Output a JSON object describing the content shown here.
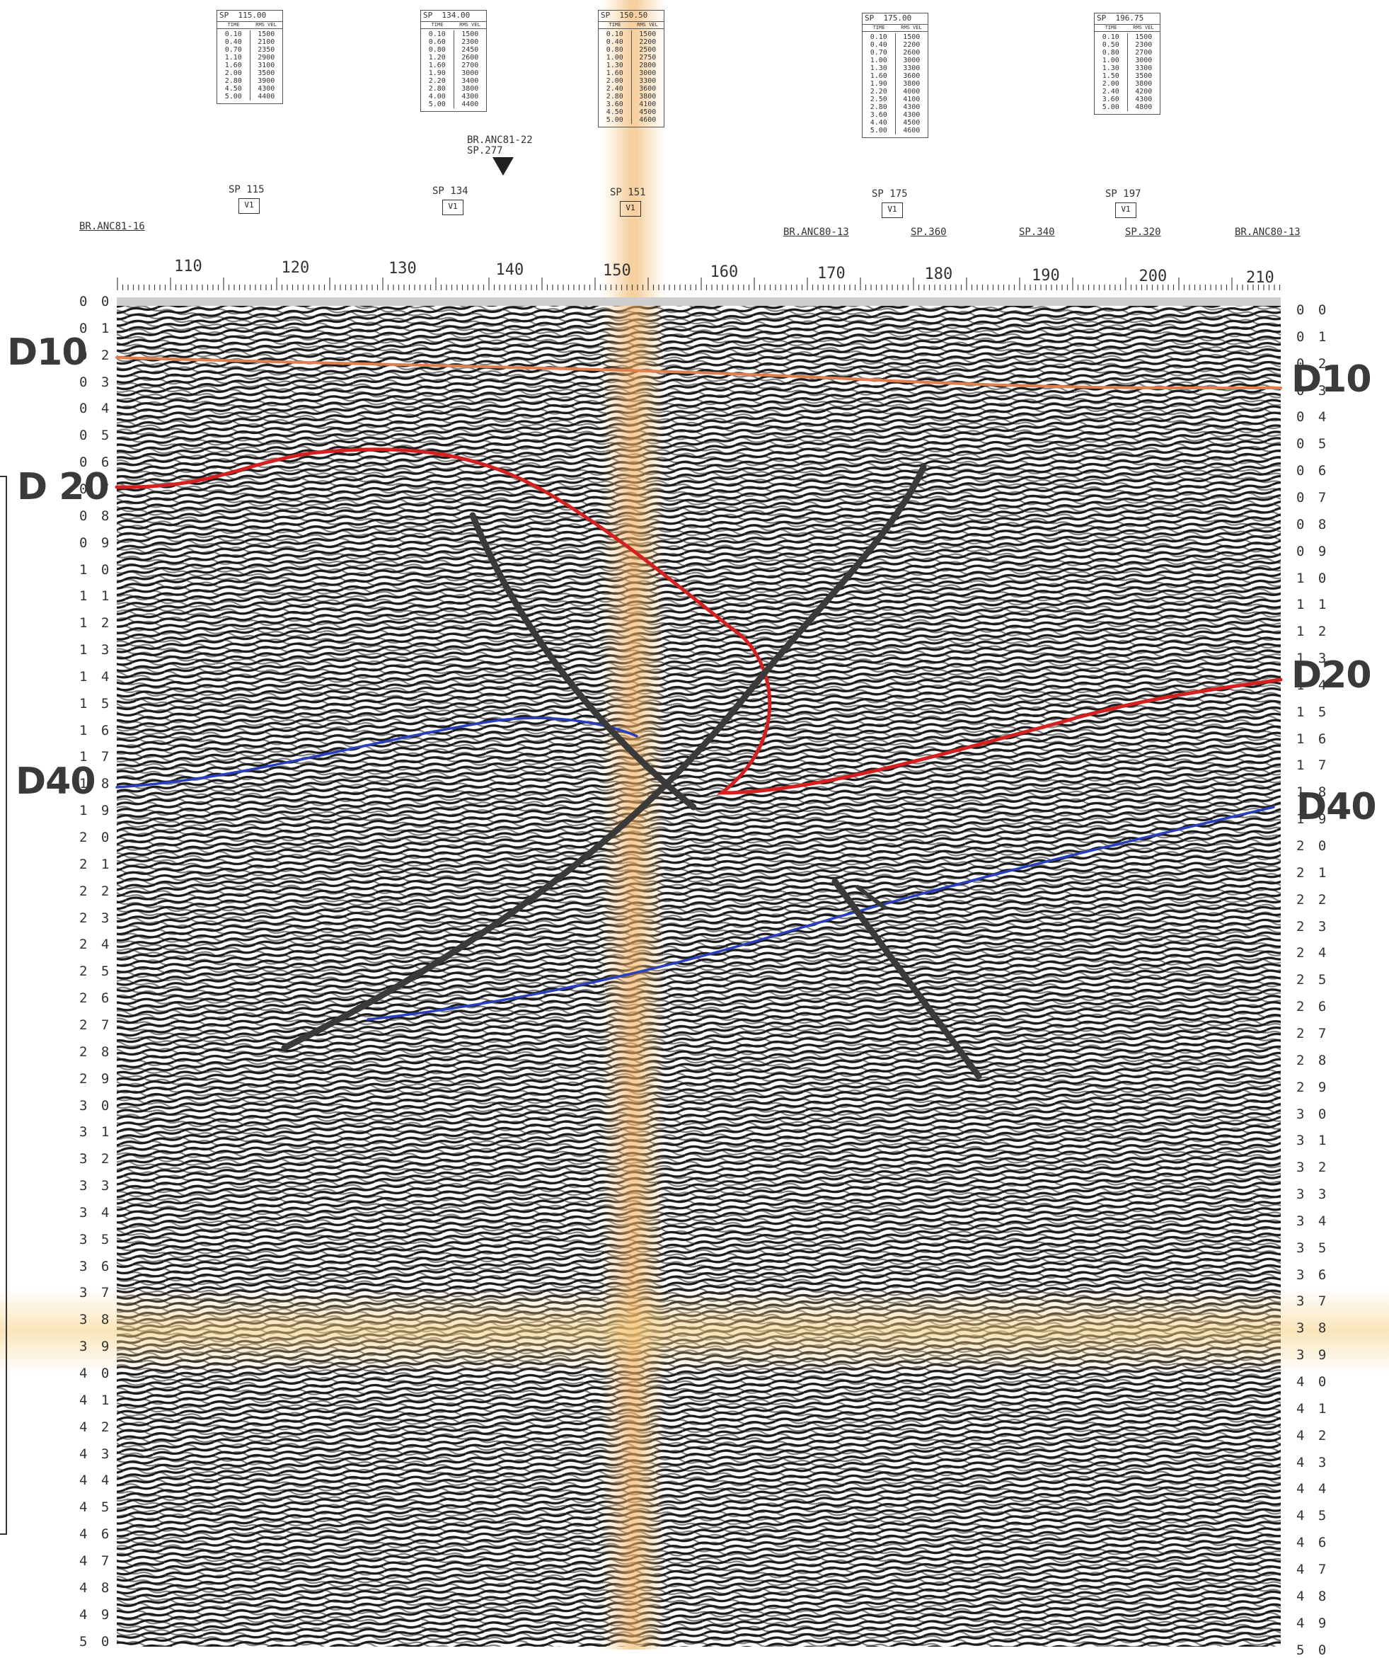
{
  "velocity_tables": [
    {
      "sp": "115.00",
      "col_time": "TIME",
      "col_vel": "RMS VEL",
      "times": [
        "0.10",
        "0.40",
        "0.70",
        "1.10",
        "1.60",
        "2.00",
        "2.80",
        "4.50",
        "5.00"
      ],
      "vels": [
        "1500",
        "2100",
        "2350",
        "2900",
        "3100",
        "3500",
        "3900",
        "4300",
        "4400"
      ]
    },
    {
      "sp": "134.00",
      "col_time": "TIME",
      "col_vel": "RMS VEL",
      "times": [
        "0.10",
        "0.60",
        "0.80",
        "1.20",
        "1.60",
        "1.90",
        "2.20",
        "2.80",
        "4.00",
        "5.00"
      ],
      "vels": [
        "1500",
        "2300",
        "2450",
        "2600",
        "2700",
        "3000",
        "3400",
        "3800",
        "4300",
        "4400"
      ]
    },
    {
      "sp": "150.50",
      "col_time": "TIME",
      "col_vel": "RMS VEL",
      "times": [
        "0.10",
        "0.40",
        "0.80",
        "1.00",
        "1.30",
        "1.60",
        "2.00",
        "2.40",
        "2.80",
        "3.60",
        "4.50",
        "5.00"
      ],
      "vels": [
        "1500",
        "2200",
        "2500",
        "2750",
        "2800",
        "3000",
        "3300",
        "3600",
        "3800",
        "4100",
        "4500",
        "4600"
      ]
    },
    {
      "sp": "175.00",
      "col_time": "TIME",
      "col_vel": "RMS VEL",
      "times": [
        "0.10",
        "0.40",
        "0.70",
        "1.00",
        "1.30",
        "1.60",
        "1.90",
        "2.20",
        "2.50",
        "2.80",
        "3.60",
        "4.40",
        "5.00"
      ],
      "vels": [
        "1500",
        "2200",
        "2600",
        "3000",
        "3300",
        "3600",
        "3800",
        "4000",
        "4100",
        "4300",
        "4300",
        "4500",
        "4600"
      ]
    },
    {
      "sp": "196.75",
      "col_time": "TIME",
      "col_vel": "RMS VEL",
      "times": [
        "0.10",
        "0.50",
        "0.80",
        "1.00",
        "1.30",
        "1.50",
        "2.00",
        "2.40",
        "3.60",
        "5.00"
      ],
      "vels": [
        "1500",
        "2300",
        "2700",
        "3000",
        "3300",
        "3500",
        "3800",
        "4200",
        "4300",
        "4800"
      ]
    }
  ],
  "intersection_marker": {
    "line1": "BR.ANC81-22",
    "line2": "SP.277"
  },
  "velocity_points": [
    {
      "label": "SP 115",
      "sym": "V1"
    },
    {
      "label": "SP 134",
      "sym": "V1"
    },
    {
      "label": "SP 151",
      "sym": "V1"
    },
    {
      "label": "SP 175",
      "sym": "V1"
    },
    {
      "label": "SP 197",
      "sym": "V1"
    }
  ],
  "line_ties": [
    "BR.ANC81-16",
    "BR.ANC80-13",
    "SP.360",
    "SP.340",
    "SP.320",
    "BR.ANC80-13"
  ],
  "cdp_labels": [
    "110",
    "120",
    "130",
    "140",
    "150",
    "160",
    "170",
    "180",
    "190",
    "200",
    "210"
  ],
  "time_ticks_left": [
    "0 0",
    "0 1",
    "0 2",
    "0 3",
    "0 4",
    "0 5",
    "0 6",
    "0 7",
    "0 8",
    "0 9",
    "1 0",
    "1 1",
    "1 2",
    "1 3",
    "1 4",
    "1 5",
    "1 6",
    "1 7",
    "1 8",
    "1 9",
    "2 0",
    "2 1",
    "2 2",
    "2 3",
    "2 4",
    "2 5",
    "2 6",
    "2 7",
    "2 8",
    "2 9",
    "3 0",
    "3 1",
    "3 2",
    "3 3",
    "3 4",
    "3 5",
    "3 6",
    "3 7",
    "3 8",
    "3 9",
    "4 0",
    "4 1",
    "4 2",
    "4 3",
    "4 4",
    "4 5",
    "4 6",
    "4 7",
    "4 8",
    "4 9",
    "5 0"
  ],
  "time_ticks_right": [
    "0 0",
    "0 1",
    "0 2",
    "0 3",
    "0 4",
    "0 5",
    "0 6",
    "0 7",
    "0 8",
    "0 9",
    "1 0",
    "1 1",
    "1 2",
    "1 3",
    "1 4",
    "1 5",
    "1 6",
    "1 7",
    "1 8",
    "1 9",
    "2 0",
    "2 1",
    "2 2",
    "2 3",
    "2 4",
    "2 5",
    "2 6",
    "2 7",
    "2 8",
    "2 9",
    "3 0",
    "3 1",
    "3 2",
    "3 3",
    "3 4",
    "3 5",
    "3 6",
    "3 7",
    "3 8",
    "3 9",
    "4 0",
    "4 1",
    "4 2",
    "4 3",
    "4 4",
    "4 5",
    "4 6",
    "4 7",
    "4 8",
    "4 9",
    "5 0"
  ],
  "horizon_labels": {
    "d10_left": "D10",
    "d20_left": "D 20",
    "d40_left": "D40",
    "d10_right": "D10",
    "d20_right": "D20",
    "d40_right": "D40"
  },
  "colors": {
    "d10": "#e08050",
    "d20": "#d42020",
    "d40": "#2a3fc0",
    "fault": "#3a3a3a",
    "stain": "#f2c070"
  }
}
